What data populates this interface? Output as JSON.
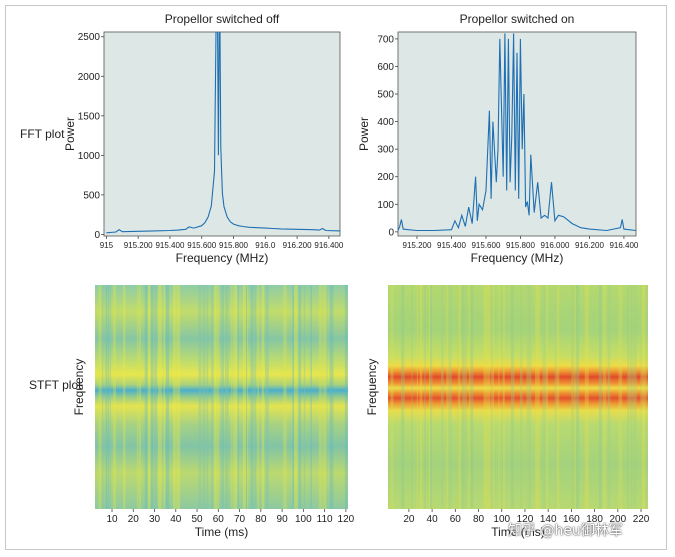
{
  "chart_data": [
    {
      "type": "line",
      "panel": "fft-off",
      "title": "Propellor switched off",
      "row_label": "FFT plot",
      "xlabel": "Frequency (MHz)",
      "ylabel": "Power",
      "xlim": [
        914.985,
        916.47
      ],
      "ylim": [
        -20,
        2560
      ],
      "xticks": [
        {
          "v": 915.0,
          "label": "915"
        },
        {
          "v": 915.2,
          "label": "915.200"
        },
        {
          "v": 915.4,
          "label": "915.400"
        },
        {
          "v": 915.6,
          "label": "915.600"
        },
        {
          "v": 915.8,
          "label": "915.800"
        },
        {
          "v": 916.0,
          "label": "916.0"
        },
        {
          "v": 916.2,
          "label": "916.200"
        },
        {
          "v": 916.4,
          "label": "916.400"
        }
      ],
      "yticks": [
        0,
        500,
        1000,
        1500,
        2000,
        2500
      ],
      "background": "#dde8e6",
      "line_color": "#1f6fb2",
      "series": [
        {
          "x": [
            915.0,
            915.06,
            915.08,
            915.1,
            915.2,
            915.3,
            915.4,
            915.45,
            915.5,
            915.52,
            915.55,
            915.6,
            915.62,
            915.64,
            915.66,
            915.68,
            915.69,
            915.7,
            915.705,
            915.71,
            915.715,
            915.72,
            915.725,
            915.73,
            915.74,
            915.76,
            915.78,
            915.8,
            915.83,
            915.86,
            915.9,
            915.95,
            916.0,
            916.05,
            916.1,
            916.2,
            916.3,
            916.34,
            916.36,
            916.38,
            916.47
          ],
          "y": [
            20,
            30,
            60,
            35,
            40,
            45,
            50,
            55,
            65,
            95,
            80,
            110,
            150,
            220,
            360,
            800,
            2560,
            2560,
            1000,
            2560,
            2560,
            1100,
            800,
            520,
            350,
            220,
            160,
            130,
            110,
            100,
            90,
            85,
            80,
            75,
            70,
            65,
            60,
            55,
            75,
            50,
            45
          ]
        }
      ]
    },
    {
      "type": "line",
      "panel": "fft-on",
      "title": "Propellor switched on",
      "row_label": "",
      "xlabel": "Frequency (MHz)",
      "ylabel": "Power",
      "xlim": [
        915.09,
        916.47
      ],
      "ylim": [
        -15,
        725
      ],
      "xticks": [
        {
          "v": 915.2,
          "label": "915.200"
        },
        {
          "v": 915.4,
          "label": "915.400"
        },
        {
          "v": 915.6,
          "label": "915.600"
        },
        {
          "v": 915.8,
          "label": "915.800"
        },
        {
          "v": 916.0,
          "label": "916.000"
        },
        {
          "v": 916.2,
          "label": "916.200"
        },
        {
          "v": 916.4,
          "label": "916.400"
        }
      ],
      "yticks": [
        0,
        100,
        200,
        300,
        400,
        500,
        600,
        700
      ],
      "background": "#dde8e6",
      "line_color": "#1f6fb2",
      "series": [
        {
          "x": [
            915.09,
            915.1,
            915.11,
            915.12,
            915.15,
            915.2,
            915.3,
            915.4,
            915.42,
            915.44,
            915.46,
            915.48,
            915.5,
            915.52,
            915.54,
            915.55,
            915.56,
            915.58,
            915.6,
            915.62,
            915.63,
            915.64,
            915.66,
            915.67,
            915.68,
            915.7,
            915.71,
            915.72,
            915.73,
            915.74,
            915.75,
            915.76,
            915.77,
            915.78,
            915.79,
            915.8,
            915.81,
            915.82,
            915.83,
            915.84,
            915.85,
            915.86,
            915.88,
            915.9,
            915.92,
            915.94,
            915.96,
            915.98,
            916.0,
            916.02,
            916.05,
            916.1,
            916.15,
            916.2,
            916.3,
            916.38,
            916.39,
            916.4,
            916.47
          ],
          "y": [
            5,
            20,
            45,
            10,
            8,
            5,
            5,
            8,
            40,
            15,
            60,
            20,
            90,
            30,
            200,
            40,
            100,
            80,
            150,
            440,
            120,
            400,
            180,
            300,
            700,
            200,
            720,
            150,
            700,
            180,
            350,
            720,
            150,
            650,
            120,
            700,
            300,
            500,
            90,
            110,
            60,
            280,
            70,
            180,
            50,
            60,
            50,
            180,
            40,
            60,
            55,
            30,
            15,
            10,
            5,
            15,
            45,
            10,
            5
          ]
        }
      ]
    },
    {
      "type": "heatmap",
      "panel": "stft-off",
      "row_label": "STFT plot",
      "xlabel": "Time (ms)",
      "ylabel": "Frequency",
      "xlim": [
        2,
        121
      ],
      "xticks": [
        10,
        20,
        30,
        40,
        50,
        60,
        70,
        80,
        90,
        100,
        110,
        120
      ],
      "palette": [
        "#5fb8c4",
        "#7fc59f",
        "#a3d27e",
        "#c9df63",
        "#e9e74a"
      ],
      "band_position": 0.47,
      "band_description": "narrow blue-cyan band along the centre frequency"
    },
    {
      "type": "heatmap",
      "panel": "stft-on",
      "row_label": "",
      "xlabel": "Time (ms)",
      "ylabel": "Frequency",
      "xlim": [
        2,
        226
      ],
      "xticks": [
        20,
        40,
        60,
        80,
        100,
        120,
        140,
        160,
        180,
        200,
        220
      ],
      "palette": [
        "#9fcf82",
        "#d7e05a",
        "#f2c53a",
        "#ec8a2b",
        "#e0442a"
      ],
      "band_position": 0.45,
      "band_description": "two parallel red bands of modulated power"
    }
  ],
  "watermark": "知乎 @heu御林军"
}
